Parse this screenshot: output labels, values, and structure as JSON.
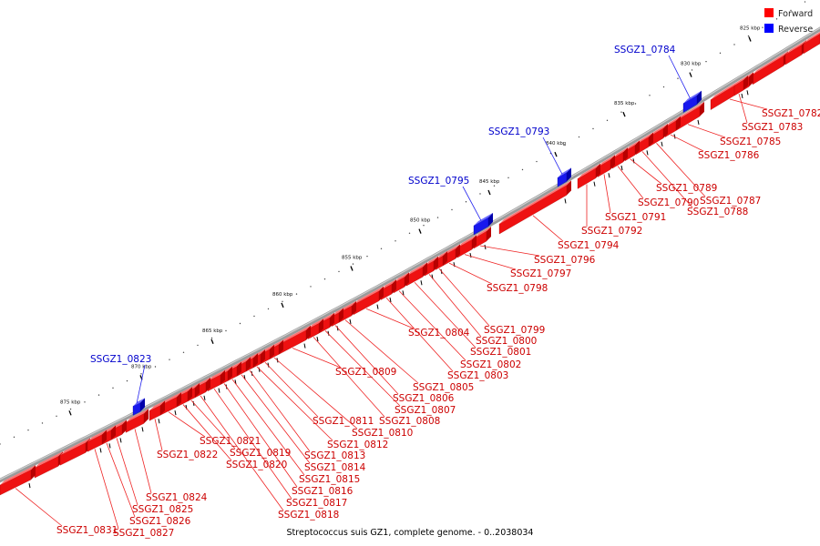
{
  "caption": "Streptococcus suis GZ1, complete genome. - 0..2038034",
  "legend": [
    {
      "label": "Forward",
      "color": "#ff0000"
    },
    {
      "label": "Reverse",
      "color": "#0000ff"
    }
  ],
  "colors": {
    "forward": "#ee1111",
    "forward_side": "#b80000",
    "reverse": "#1818ee",
    "reverse_side": "#0000aa",
    "backbone": "#888888"
  },
  "scale": {
    "unit": "kbp",
    "start_kb": 825,
    "end_kb": 875,
    "major_step_kb": 5,
    "ticks": [
      "825 kbp",
      "830 kbp",
      "835 kbp",
      "840 kbp",
      "845 kbp",
      "850 kbp",
      "855 kbp",
      "860 kbp",
      "865 kbp",
      "870 kbp",
      "875 kbp"
    ]
  },
  "genes": [
    {
      "id": "SSGZ1_0782",
      "strand": "forward"
    },
    {
      "id": "SSGZ1_0783",
      "strand": "forward"
    },
    {
      "id": "SSGZ1_0784",
      "strand": "reverse"
    },
    {
      "id": "SSGZ1_0785",
      "strand": "forward"
    },
    {
      "id": "SSGZ1_0786",
      "strand": "forward"
    },
    {
      "id": "SSGZ1_0787",
      "strand": "forward"
    },
    {
      "id": "SSGZ1_0788",
      "strand": "forward"
    },
    {
      "id": "SSGZ1_0789",
      "strand": "forward"
    },
    {
      "id": "SSGZ1_0790",
      "strand": "forward"
    },
    {
      "id": "SSGZ1_0791",
      "strand": "forward"
    },
    {
      "id": "SSGZ1_0792",
      "strand": "forward"
    },
    {
      "id": "SSGZ1_0793",
      "strand": "reverse"
    },
    {
      "id": "SSGZ1_0794",
      "strand": "forward"
    },
    {
      "id": "SSGZ1_0795",
      "strand": "reverse"
    },
    {
      "id": "SSGZ1_0796",
      "strand": "forward"
    },
    {
      "id": "SSGZ1_0797",
      "strand": "forward"
    },
    {
      "id": "SSGZ1_0798",
      "strand": "forward"
    },
    {
      "id": "SSGZ1_0799",
      "strand": "forward"
    },
    {
      "id": "SSGZ1_0800",
      "strand": "forward"
    },
    {
      "id": "SSGZ1_0801",
      "strand": "forward"
    },
    {
      "id": "SSGZ1_0802",
      "strand": "forward"
    },
    {
      "id": "SSGZ1_0803",
      "strand": "forward"
    },
    {
      "id": "SSGZ1_0804",
      "strand": "forward"
    },
    {
      "id": "SSGZ1_0805",
      "strand": "forward"
    },
    {
      "id": "SSGZ1_0806",
      "strand": "forward"
    },
    {
      "id": "SSGZ1_0807",
      "strand": "forward"
    },
    {
      "id": "SSGZ1_0808",
      "strand": "forward"
    },
    {
      "id": "SSGZ1_0809",
      "strand": "forward"
    },
    {
      "id": "SSGZ1_0810",
      "strand": "forward"
    },
    {
      "id": "SSGZ1_0811",
      "strand": "forward"
    },
    {
      "id": "SSGZ1_0812",
      "strand": "forward"
    },
    {
      "id": "SSGZ1_0813",
      "strand": "forward"
    },
    {
      "id": "SSGZ1_0814",
      "strand": "forward"
    },
    {
      "id": "SSGZ1_0815",
      "strand": "forward"
    },
    {
      "id": "SSGZ1_0816",
      "strand": "forward"
    },
    {
      "id": "SSGZ1_0817",
      "strand": "forward"
    },
    {
      "id": "SSGZ1_0818",
      "strand": "forward"
    },
    {
      "id": "SSGZ1_0819",
      "strand": "forward"
    },
    {
      "id": "SSGZ1_0820",
      "strand": "forward"
    },
    {
      "id": "SSGZ1_0821",
      "strand": "forward"
    },
    {
      "id": "SSGZ1_0822",
      "strand": "forward"
    },
    {
      "id": "SSGZ1_0823",
      "strand": "reverse"
    },
    {
      "id": "SSGZ1_0824",
      "strand": "forward"
    },
    {
      "id": "SSGZ1_0825",
      "strand": "forward"
    },
    {
      "id": "SSGZ1_0826",
      "strand": "forward"
    },
    {
      "id": "SSGZ1_0827",
      "strand": "forward"
    },
    {
      "id": "SSGZ1_0831",
      "strand": "forward"
    }
  ]
}
